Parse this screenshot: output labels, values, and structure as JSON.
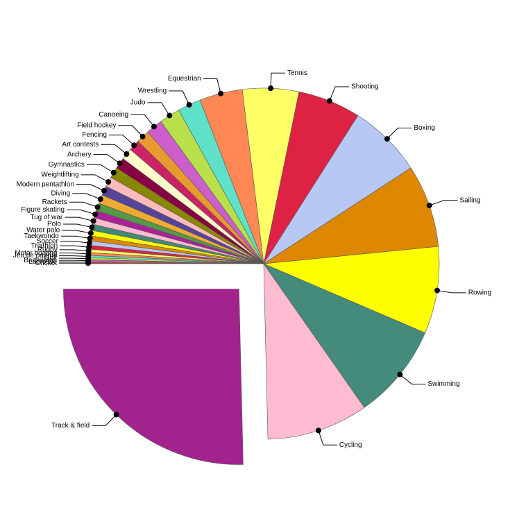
{
  "chart_data": {
    "type": "pie",
    "categories": [
      "Track & field",
      "Cycling",
      "Swimming",
      "Rowing",
      "Sailing",
      "Boxing",
      "Shooting",
      "Tennis",
      "Equestrian",
      "Wrestling",
      "Judo",
      "Canoeing",
      "Field hockey",
      "Fencing",
      "Art contests",
      "Archery",
      "Gymnastics",
      "Weightlifting",
      "Modern pentathlon",
      "Diving",
      "Rackets",
      "Figure skating",
      "Tug of war",
      "Polo",
      "Water polo",
      "Taekwondo",
      "Soccer",
      "Triathlon",
      "Rugby",
      "Motor boating",
      "Jeu de paume",
      "Golf",
      "Badminton",
      "Lacrosse",
      "Cricket"
    ],
    "values": [
      25,
      9.2,
      8.7,
      7.9,
      7.5,
      6.7,
      5.7,
      5.1,
      3.9,
      2.1,
      1.9,
      1.5,
      1.2,
      1.0,
      1.05,
      1.0,
      1.0,
      0.9,
      0.85,
      0.8,
      0.7,
      0.65,
      0.6,
      0.55,
      0.5,
      0.45,
      0.4,
      0.35,
      0.3,
      0.25,
      0.2,
      0.2,
      0.15,
      0.1,
      0.1
    ],
    "colors": [
      "#a2238e",
      "#ffbbd0",
      "#458b7c",
      "#ffff00",
      "#dd8800",
      "#b8c8f5",
      "#dd2244",
      "#ffff66",
      "#ff8855",
      "#5fe0c8",
      "#b8e04a",
      "#cc5fcc",
      "#e89a30",
      "#cc2266",
      "#ffffcc",
      "#880044",
      "#888800",
      "#ffbbbb",
      "#554499",
      "#eeaa33",
      "#559944",
      "#aa2299",
      "#ffbbd0",
      "#448877",
      "#ffff00",
      "#dd8800",
      "#b8c8f5",
      "#dd2244",
      "#ffff66",
      "#ff8855",
      "#5fe0c8",
      "#b8e04a",
      "#cc5fcc",
      "#e89a30",
      "#cc2266"
    ],
    "explode": [
      0
    ]
  }
}
